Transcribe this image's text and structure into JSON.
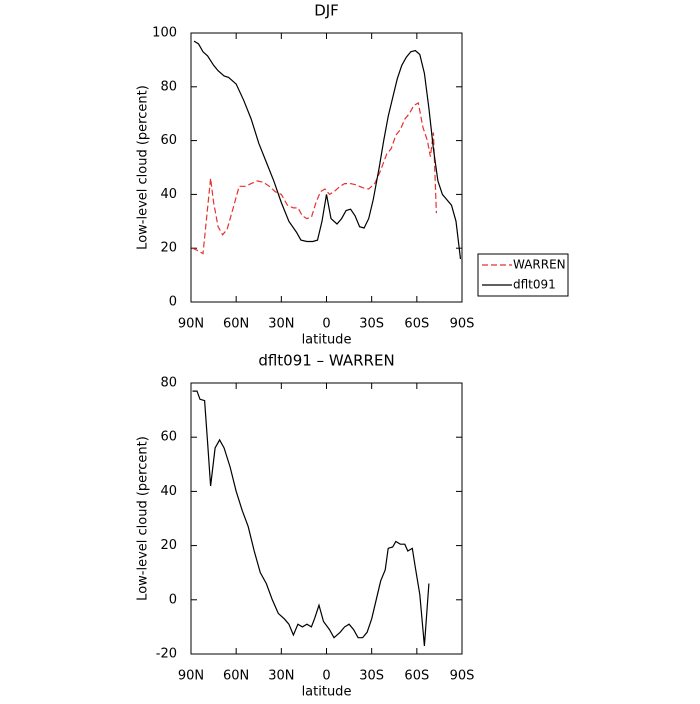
{
  "chart_data": [
    {
      "type": "line",
      "title": "DJF",
      "xlabel": "latitude",
      "ylabel": "Low-level cloud (percent)",
      "xlim": [
        90,
        -90
      ],
      "ylim": [
        0,
        100
      ],
      "xticks": [
        {
          "value": 90,
          "label": "90N"
        },
        {
          "value": 60,
          "label": "60N"
        },
        {
          "value": 30,
          "label": "30N"
        },
        0,
        {
          "value": -30,
          "label": "30S"
        },
        {
          "value": -60,
          "label": "60S"
        },
        {
          "value": -90,
          "label": "90S"
        }
      ],
      "yticks": [
        0,
        20,
        40,
        60,
        80,
        100
      ],
      "legend": "right",
      "series": [
        {
          "name": "WARREN",
          "color": "#e8312f",
          "dashed": true,
          "x": [
            89,
            85,
            82,
            79,
            77,
            75,
            72,
            69,
            66,
            62,
            58,
            54,
            50,
            46,
            42,
            38,
            34,
            30,
            26,
            22,
            19,
            16,
            13,
            10,
            7,
            4,
            1,
            -2,
            -5,
            -9,
            -12,
            -16,
            -20,
            -24,
            -28,
            -32,
            -36,
            -40,
            -43,
            -46,
            -49,
            -52,
            -55,
            -58,
            -61,
            -64,
            -67,
            -69,
            -71,
            -73
          ],
          "values": [
            20,
            19,
            18,
            35,
            46,
            37,
            28,
            25,
            27,
            35,
            43,
            43,
            44,
            45,
            44.5,
            43,
            41,
            40,
            36,
            35,
            35,
            32,
            31,
            31.5,
            37,
            41,
            42,
            40,
            41,
            43,
            44,
            44,
            43.5,
            42.5,
            42,
            44,
            49,
            55,
            57,
            62,
            64,
            68,
            70,
            73,
            74,
            65,
            60,
            54,
            63,
            33
          ]
        },
        {
          "name": "dflt091",
          "color": "#000000",
          "dashed": false,
          "x": [
            88,
            85,
            82,
            79,
            75,
            72,
            68,
            65,
            60,
            55,
            50,
            45,
            40,
            35,
            30,
            25,
            20,
            17,
            13,
            9,
            6,
            3,
            0,
            -3,
            -7,
            -10,
            -13,
            -16,
            -19,
            -22,
            -25,
            -28,
            -31,
            -35,
            -38,
            -41,
            -44,
            -47,
            -50,
            -53,
            -56,
            -59,
            -62,
            -65,
            -68,
            -71,
            -74,
            -77,
            -80,
            -83,
            -86,
            -89
          ],
          "values": [
            97,
            96,
            93,
            91.5,
            88,
            86,
            84,
            83.5,
            81,
            75,
            68,
            59,
            52,
            45,
            37,
            30,
            26,
            23,
            22.5,
            22.5,
            23,
            30,
            40,
            31,
            29,
            31,
            34,
            34.5,
            32,
            28,
            27.5,
            31,
            38,
            50,
            60,
            69,
            76,
            83,
            88,
            91,
            93,
            93.5,
            92,
            85,
            72,
            57,
            45,
            40,
            38,
            36,
            30,
            16
          ]
        }
      ]
    },
    {
      "type": "line",
      "title": "dflt091 – WARREN",
      "xlabel": "latitude",
      "ylabel": "Low-level cloud (percent)",
      "xlim": [
        90,
        -90
      ],
      "ylim": [
        -20,
        80
      ],
      "xticks": [
        {
          "value": 90,
          "label": "90N"
        },
        {
          "value": 60,
          "label": "60N"
        },
        {
          "value": 30,
          "label": "30N"
        },
        0,
        {
          "value": -30,
          "label": "30S"
        },
        {
          "value": -60,
          "label": "60S"
        },
        {
          "value": -90,
          "label": "90S"
        }
      ],
      "yticks": [
        -20,
        0,
        20,
        40,
        60,
        80
      ],
      "series": [
        {
          "color": "#000000",
          "dashed": false,
          "x": [
            89,
            86,
            84,
            81,
            79,
            77,
            74,
            71,
            68,
            64,
            60,
            56,
            52,
            48,
            44,
            40,
            36,
            32,
            28,
            25,
            22,
            19,
            16,
            13,
            10,
            8,
            5,
            2,
            -2,
            -5,
            -9,
            -12,
            -15,
            -18,
            -21,
            -24,
            -27,
            -30,
            -33,
            -36,
            -39,
            -41,
            -44,
            -46,
            -49,
            -52,
            -54,
            -57,
            -59,
            -62,
            -65,
            -68
          ],
          "values": [
            77,
            77,
            74,
            73.5,
            58,
            42,
            56,
            59,
            56,
            49,
            40,
            33,
            27,
            18,
            10,
            6,
            0,
            -5,
            -7,
            -9,
            -13,
            -9,
            -10,
            -9,
            -10,
            -7,
            -2,
            -8,
            -11,
            -14,
            -12,
            -10,
            -9,
            -11,
            -14,
            -14,
            -12,
            -7,
            0,
            7,
            11,
            19,
            19.5,
            21.5,
            20.5,
            20.5,
            18,
            19,
            12,
            2,
            -17,
            6
          ]
        }
      ]
    }
  ]
}
